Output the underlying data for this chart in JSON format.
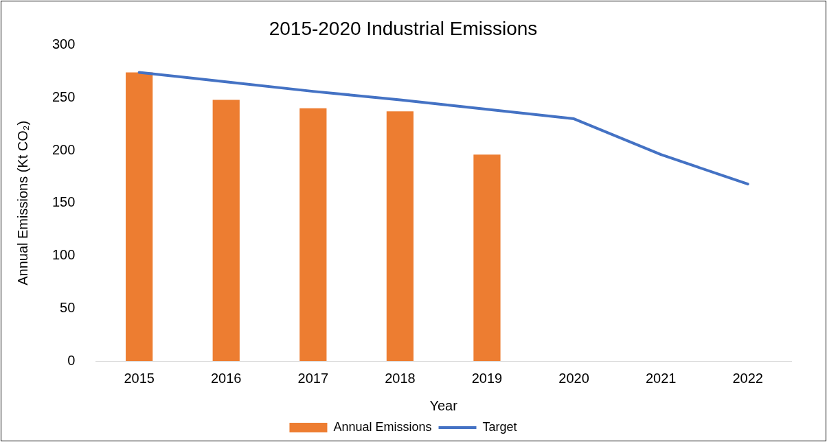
{
  "chart_data": {
    "type": "bar",
    "title": "2015-2020 Industrial Emissions",
    "xlabel": "Year",
    "ylabel": "Annual Emissions (Kt CO₂)",
    "categories": [
      "2015",
      "2016",
      "2017",
      "2018",
      "2019",
      "2020",
      "2021",
      "2022"
    ],
    "series": [
      {
        "name": "Annual Emissions",
        "color": "#ed7d31",
        "values": [
          274,
          248,
          240,
          237,
          196,
          null,
          null,
          null
        ]
      },
      {
        "name": "Target",
        "type": "line",
        "color": "#4472c4",
        "values": [
          274,
          265,
          256,
          248,
          239,
          230,
          196,
          168
        ]
      }
    ],
    "ylim": [
      0,
      300
    ],
    "yticks": [
      0,
      50,
      100,
      150,
      200,
      250,
      300
    ],
    "grid": false,
    "legend": "bottom"
  }
}
